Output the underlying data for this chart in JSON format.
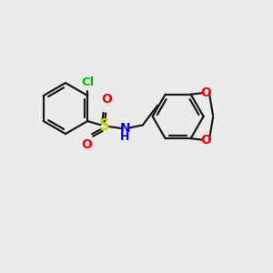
{
  "background_color": "#ebebeb",
  "bond_color": "#1a1a1a",
  "bond_width": 1.6,
  "cl_color": "#00bb00",
  "s_color": "#cccc00",
  "o_color": "#ff0000",
  "n_color": "#0000ff",
  "figsize": [
    3.0,
    3.0
  ],
  "dpi": 100,
  "xlim": [
    0,
    10
  ],
  "ylim": [
    0,
    10
  ]
}
